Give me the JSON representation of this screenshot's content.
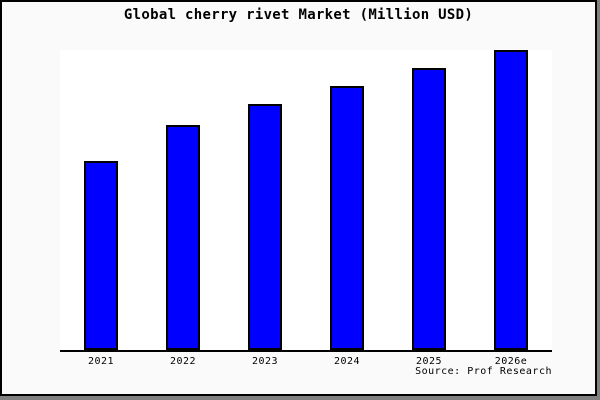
{
  "frame": {
    "background": "#fafafa",
    "border_color": "#000000",
    "shadow_color": "#808080",
    "plot_background": "#ffffff"
  },
  "chart_data": {
    "type": "bar",
    "title": "Global cherry rivet Market (Million USD)",
    "categories": [
      "2021",
      "2022",
      "2023",
      "2024",
      "2025",
      "2026e"
    ],
    "values": [
      63,
      75,
      82,
      88,
      94,
      100
    ],
    "value_note": "no y-axis or data labels shown; values estimated relative to 2026e = 100",
    "xlabel": "",
    "ylabel": "",
    "ylim": [
      0,
      100
    ],
    "grid": false,
    "legend_position": "none",
    "bar_color": "#0000ff",
    "bar_border_color": "#000000",
    "axis_color": "#000000",
    "source": "Source: Prof Research"
  }
}
